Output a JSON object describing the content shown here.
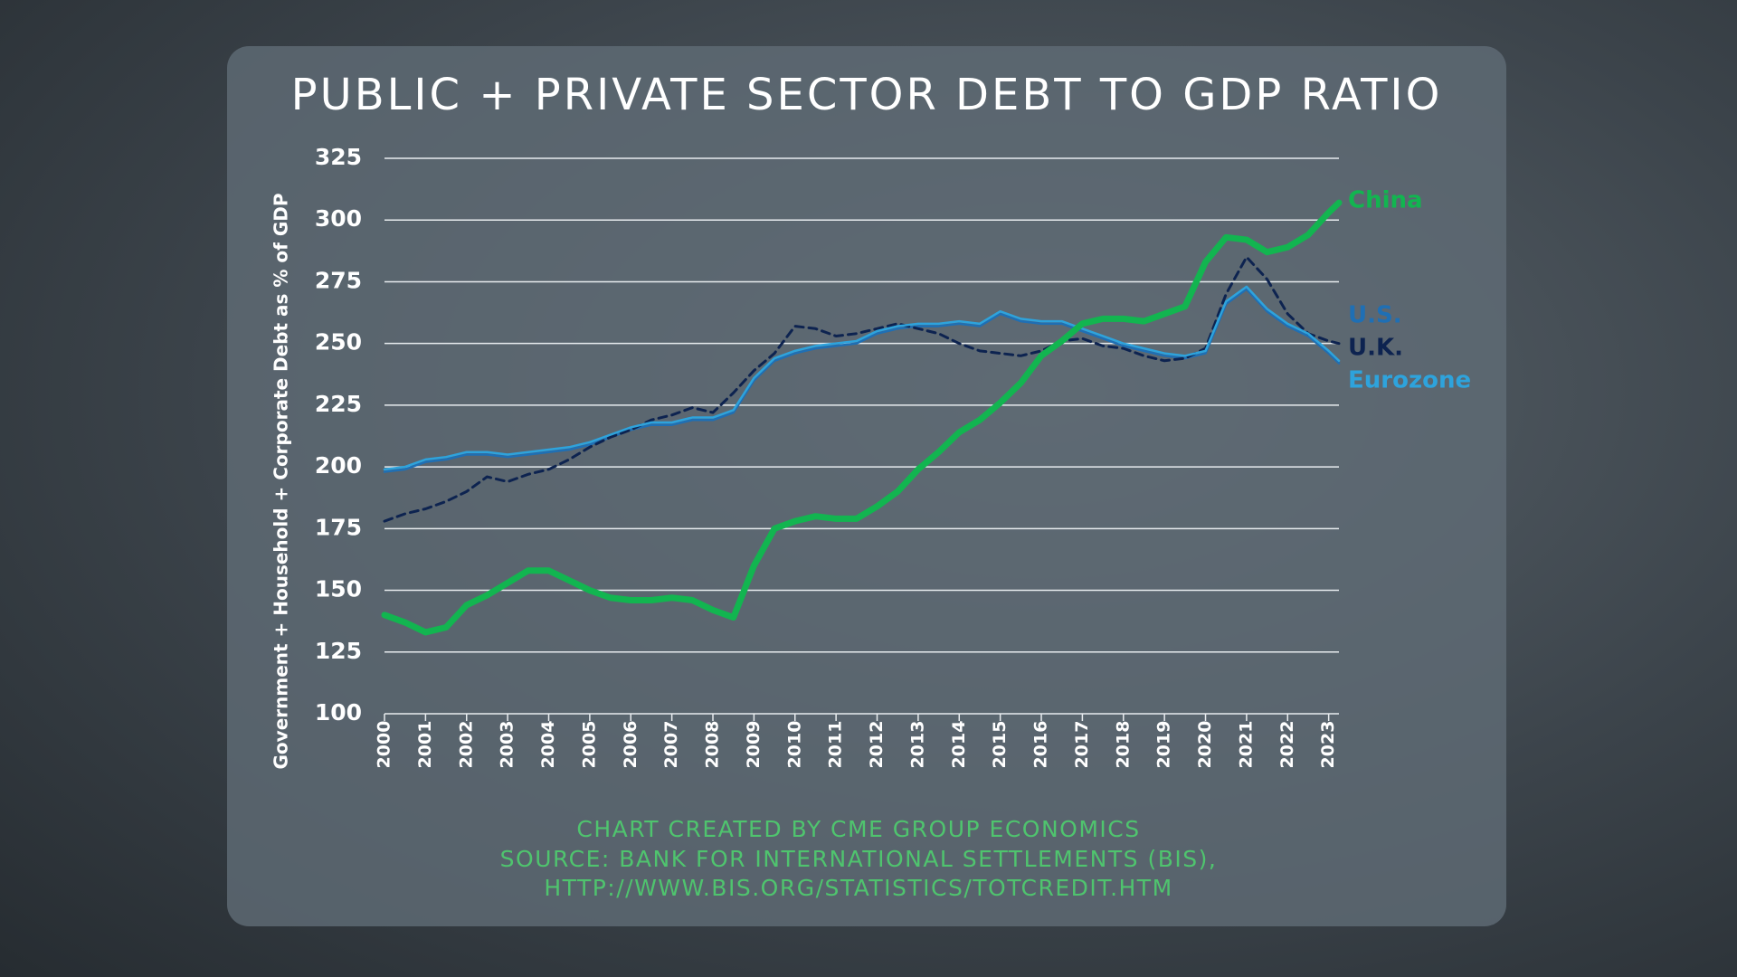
{
  "chart_data": {
    "type": "line",
    "title": "PUBLIC + PRIVATE SECTOR DEBT TO GDP RATIO",
    "y_label": "Government + Household + Corporate Debt as % of GDP",
    "source_lines": [
      "CHART CREATED BY CME GROUP ECONOMICS",
      "SOURCE: BANK FOR INTERNATIONAL SETTLEMENTS (BIS),",
      "HTTP://WWW.BIS.ORG/STATISTICS/TOTCREDIT.HTM"
    ],
    "x": [
      2000,
      2000.5,
      2001,
      2001.5,
      2002,
      2002.5,
      2003,
      2003.5,
      2004,
      2004.5,
      2005,
      2005.5,
      2006,
      2006.5,
      2007,
      2007.5,
      2008,
      2008.5,
      2009,
      2009.5,
      2010,
      2010.5,
      2011,
      2011.5,
      2012,
      2012.5,
      2013,
      2013.5,
      2014,
      2014.5,
      2015,
      2015.5,
      2016,
      2016.5,
      2017,
      2017.5,
      2018,
      2018.5,
      2019,
      2019.5,
      2020,
      2020.5,
      2021,
      2021.5,
      2022,
      2022.5,
      2023,
      2023.25
    ],
    "series": [
      {
        "name": "China",
        "color": "#12b550",
        "values": [
          140,
          137,
          133,
          135,
          144,
          148,
          153,
          158,
          158,
          154,
          150,
          147,
          146,
          146,
          147,
          146,
          142,
          139,
          160,
          175,
          178,
          180,
          179,
          179,
          184,
          190,
          199,
          206,
          214,
          219,
          226,
          234,
          245,
          251,
          258,
          260,
          260,
          259,
          262,
          265,
          283,
          293,
          292,
          287,
          289,
          294,
          303,
          307
        ]
      },
      {
        "name": "U.S.",
        "color": "#1f6fb4",
        "values": [
          198,
          199,
          202,
          203,
          205,
          205,
          204,
          205,
          206,
          207,
          209,
          212,
          215,
          217,
          217,
          219,
          219,
          222,
          235,
          243,
          246,
          248,
          249,
          250,
          254,
          256,
          257,
          257,
          258,
          257,
          262,
          259,
          258,
          258,
          255,
          252,
          249,
          247,
          245,
          244,
          246,
          266,
          272,
          263,
          257,
          253,
          246,
          242
        ]
      },
      {
        "name": "U.K.",
        "color": "#0d2350",
        "dashed": true,
        "values": [
          178,
          181,
          183,
          186,
          190,
          196,
          194,
          197,
          199,
          203,
          208,
          212,
          215,
          219,
          221,
          224,
          222,
          230,
          239,
          246,
          257,
          256,
          253,
          254,
          256,
          258,
          256,
          254,
          250,
          247,
          246,
          245,
          247,
          251,
          252,
          249,
          248,
          245,
          243,
          244,
          248,
          270,
          285,
          276,
          262,
          254,
          251,
          250
        ]
      },
      {
        "name": "Eurozone",
        "color": "#2ea3dc",
        "values": [
          199,
          200,
          203,
          204,
          206,
          206,
          205,
          206,
          207,
          208,
          210,
          213,
          216,
          218,
          218,
          220,
          220,
          223,
          236,
          244,
          247,
          249,
          250,
          251,
          255,
          257,
          258,
          258,
          259,
          258,
          263,
          260,
          259,
          259,
          256,
          253,
          250,
          248,
          246,
          245,
          247,
          267,
          273,
          264,
          258,
          254,
          247,
          243
        ]
      }
    ],
    "xlim": [
      2000,
      2023.25
    ],
    "xticks": [
      2000,
      2001,
      2002,
      2003,
      2004,
      2005,
      2006,
      2007,
      2008,
      2009,
      2010,
      2011,
      2012,
      2013,
      2014,
      2015,
      2016,
      2017,
      2018,
      2019,
      2020,
      2021,
      2022,
      2023
    ],
    "ylim": [
      100,
      325
    ],
    "yticks": [
      100,
      125,
      150,
      175,
      200,
      225,
      250,
      275,
      300,
      325
    ],
    "grid": true
  }
}
